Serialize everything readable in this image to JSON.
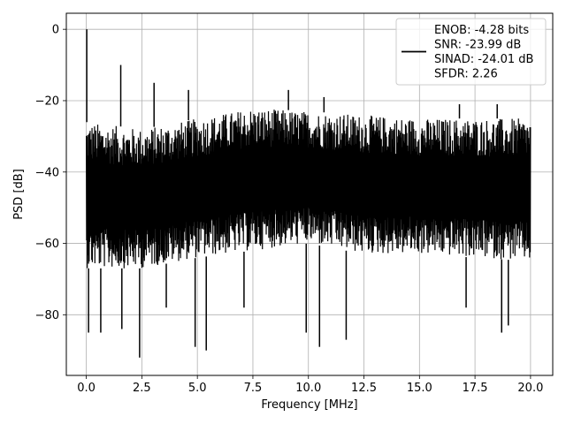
{
  "chart_data": {
    "type": "line",
    "title": "",
    "xlabel": "Frequency [MHz]",
    "ylabel": "PSD [dB]",
    "xlim": [
      -0.9,
      21.0
    ],
    "ylim": [
      -97,
      4.5
    ],
    "xticks": [
      0.0,
      2.5,
      5.0,
      7.5,
      10.0,
      12.5,
      15.0,
      17.5,
      20.0
    ],
    "xtick_labels": [
      "0.0",
      "2.5",
      "5.0",
      "7.5",
      "10.0",
      "12.5",
      "15.0",
      "17.5",
      "20.0"
    ],
    "yticks": [
      0,
      -20,
      -40,
      -60,
      -80
    ],
    "ytick_labels": [
      "0",
      "−20",
      "−40",
      "−60",
      "−80"
    ],
    "grid": true,
    "legend_position": "top-right",
    "series": [
      {
        "name": "ENOB: -4.28 bits\nSNR: -23.99 dB\nSINAD: -24.01 dB\nSFDR: 2.26",
        "color": "#000000",
        "upper_envelope": [
          [
            0.0,
            -26
          ],
          [
            2.5,
            -28
          ],
          [
            5.0,
            -25
          ],
          [
            7.5,
            -22
          ],
          [
            10.0,
            -23
          ],
          [
            12.5,
            -24
          ],
          [
            15.0,
            -25
          ],
          [
            17.5,
            -25
          ],
          [
            20.0,
            -25
          ]
        ],
        "lower_envelope": [
          [
            0.0,
            -67
          ],
          [
            2.5,
            -67
          ],
          [
            5.0,
            -64
          ],
          [
            7.5,
            -62
          ],
          [
            10.0,
            -60
          ],
          [
            12.5,
            -63
          ],
          [
            15.0,
            -63
          ],
          [
            17.5,
            -64
          ],
          [
            20.0,
            -65
          ]
        ],
        "peaks": [
          {
            "x": 0.02,
            "y": 0
          },
          {
            "x": 1.55,
            "y": -10
          },
          {
            "x": 3.05,
            "y": -15
          },
          {
            "x": 4.6,
            "y": -17
          },
          {
            "x": 9.1,
            "y": -17
          },
          {
            "x": 10.7,
            "y": -19
          },
          {
            "x": 16.8,
            "y": -21
          },
          {
            "x": 18.5,
            "y": -21
          }
        ],
        "dips": [
          {
            "x": 0.1,
            "y": -85
          },
          {
            "x": 0.65,
            "y": -85
          },
          {
            "x": 1.6,
            "y": -84
          },
          {
            "x": 2.4,
            "y": -92
          },
          {
            "x": 3.6,
            "y": -78
          },
          {
            "x": 4.9,
            "y": -89
          },
          {
            "x": 5.4,
            "y": -90
          },
          {
            "x": 7.1,
            "y": -78
          },
          {
            "x": 9.9,
            "y": -85
          },
          {
            "x": 10.5,
            "y": -89
          },
          {
            "x": 11.7,
            "y": -87
          },
          {
            "x": 17.1,
            "y": -78
          },
          {
            "x": 18.7,
            "y": -85
          },
          {
            "x": 19.0,
            "y": -83
          }
        ]
      }
    ]
  }
}
